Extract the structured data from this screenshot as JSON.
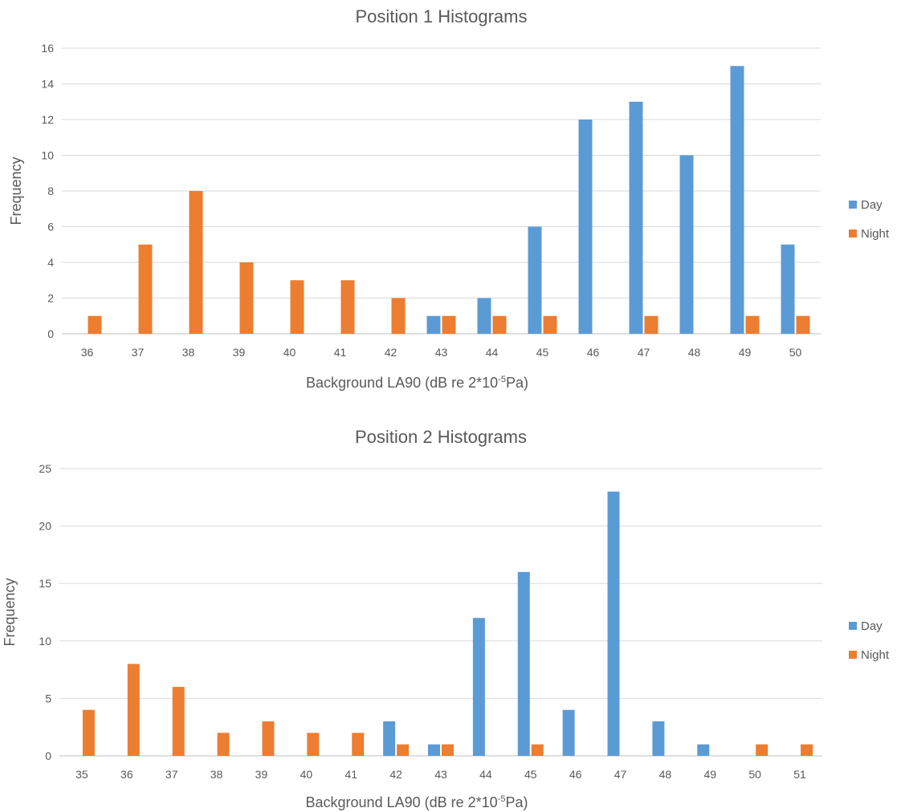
{
  "colors": {
    "Day": "#5b9bd5",
    "Night": "#ed7d31"
  },
  "chart_data": [
    {
      "type": "bar",
      "title": "Position  1 Histograms",
      "xlabel": "Background LA90 (dB re 2*10",
      "xlabel_sup": "-5",
      "xlabel_tail": "Pa)",
      "ylabel": "Frequency",
      "ylim": [
        0,
        16
      ],
      "yticks": [
        0,
        2,
        4,
        6,
        8,
        10,
        12,
        14,
        16
      ],
      "grid": true,
      "legend_position": "right",
      "categories": [
        "36",
        "37",
        "38",
        "39",
        "40",
        "41",
        "42",
        "43",
        "44",
        "45",
        "46",
        "47",
        "48",
        "49",
        "50"
      ],
      "series": [
        {
          "name": "Day",
          "values": [
            0,
            0,
            0,
            0,
            0,
            0,
            0,
            1,
            2,
            6,
            12,
            13,
            10,
            15,
            5
          ]
        },
        {
          "name": "Night",
          "values": [
            1,
            5,
            8,
            4,
            3,
            3,
            2,
            1,
            1,
            1,
            0,
            1,
            0,
            1,
            1
          ]
        }
      ]
    },
    {
      "type": "bar",
      "title": "Position  2 Histograms",
      "xlabel": "Background LA90 (dB re 2*10",
      "xlabel_sup": "-5",
      "xlabel_tail": "Pa)",
      "ylabel": "Frequency",
      "ylim": [
        0,
        25
      ],
      "yticks": [
        0,
        5,
        10,
        15,
        20,
        25
      ],
      "grid": true,
      "legend_position": "right",
      "categories": [
        "35",
        "36",
        "37",
        "38",
        "39",
        "40",
        "41",
        "42",
        "43",
        "44",
        "45",
        "46",
        "47",
        "48",
        "49",
        "50",
        "51"
      ],
      "series": [
        {
          "name": "Day",
          "values": [
            0,
            0,
            0,
            0,
            0,
            0,
            0,
            3,
            1,
            12,
            16,
            4,
            23,
            3,
            1,
            0,
            0
          ]
        },
        {
          "name": "Night",
          "values": [
            4,
            8,
            6,
            2,
            3,
            2,
            2,
            1,
            1,
            0,
            1,
            0,
            0,
            0,
            0,
            1,
            1
          ]
        }
      ]
    }
  ]
}
